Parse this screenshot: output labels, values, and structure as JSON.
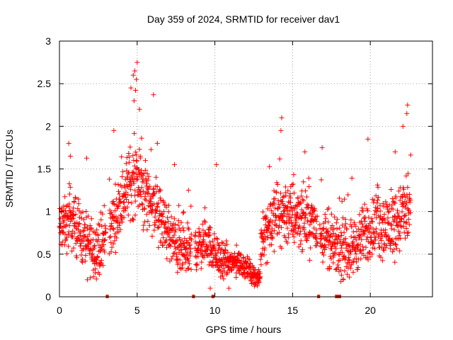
{
  "chart_data": {
    "type": "scatter",
    "title": "Day 359 of 2024, SRMTID for receiver dav1",
    "xlabel": "GPS time / hours",
    "ylabel": "SRMTID / TECUs",
    "xlim": [
      0,
      24
    ],
    "ylim": [
      0,
      3
    ],
    "xticks": [
      0,
      5,
      10,
      15,
      20
    ],
    "xtick_labels": [
      "0",
      "5",
      "10",
      "15",
      "20"
    ],
    "yticks": [
      0,
      0.5,
      1,
      1.5,
      2,
      2.5,
      3
    ],
    "ytick_labels": [
      "0",
      "0.5",
      "1",
      "1.5",
      "2",
      "2.5",
      "3"
    ],
    "grid": true,
    "marker": "+",
    "color": "#ff0000",
    "trend": [
      {
        "x": 0.0,
        "y": 0.8
      },
      {
        "x": 0.5,
        "y": 0.85
      },
      {
        "x": 1.0,
        "y": 0.85
      },
      {
        "x": 1.5,
        "y": 0.7
      },
      {
        "x": 2.0,
        "y": 0.6
      },
      {
        "x": 2.5,
        "y": 0.55
      },
      {
        "x": 3.0,
        "y": 0.7
      },
      {
        "x": 3.5,
        "y": 0.9
      },
      {
        "x": 4.0,
        "y": 1.1
      },
      {
        "x": 4.5,
        "y": 1.35
      },
      {
        "x": 5.0,
        "y": 1.4
      },
      {
        "x": 5.5,
        "y": 1.2
      },
      {
        "x": 6.0,
        "y": 1.1
      },
      {
        "x": 6.5,
        "y": 0.9
      },
      {
        "x": 7.0,
        "y": 0.75
      },
      {
        "x": 7.5,
        "y": 0.6
      },
      {
        "x": 8.0,
        "y": 0.5
      },
      {
        "x": 8.5,
        "y": 0.55
      },
      {
        "x": 9.0,
        "y": 0.6
      },
      {
        "x": 9.5,
        "y": 0.65
      },
      {
        "x": 10.0,
        "y": 0.5
      },
      {
        "x": 10.5,
        "y": 0.4
      },
      {
        "x": 11.0,
        "y": 0.4
      },
      {
        "x": 11.5,
        "y": 0.4
      },
      {
        "x": 12.0,
        "y": 0.35
      },
      {
        "x": 12.5,
        "y": 0.25
      },
      {
        "x": 12.9,
        "y": 0.2
      },
      {
        "x": 13.0,
        "y": 0.7
      },
      {
        "x": 13.5,
        "y": 0.85
      },
      {
        "x": 14.0,
        "y": 0.95
      },
      {
        "x": 14.5,
        "y": 1.0
      },
      {
        "x": 15.0,
        "y": 0.95
      },
      {
        "x": 15.5,
        "y": 0.95
      },
      {
        "x": 16.0,
        "y": 0.9
      },
      {
        "x": 16.5,
        "y": 0.8
      },
      {
        "x": 17.0,
        "y": 0.7
      },
      {
        "x": 17.5,
        "y": 0.6
      },
      {
        "x": 18.0,
        "y": 0.55
      },
      {
        "x": 18.5,
        "y": 0.55
      },
      {
        "x": 19.0,
        "y": 0.6
      },
      {
        "x": 19.5,
        "y": 0.7
      },
      {
        "x": 20.0,
        "y": 0.8
      },
      {
        "x": 20.5,
        "y": 0.85
      },
      {
        "x": 21.0,
        "y": 0.8
      },
      {
        "x": 21.5,
        "y": 0.85
      },
      {
        "x": 22.0,
        "y": 0.95
      },
      {
        "x": 22.6,
        "y": 1.05
      }
    ],
    "spread": [
      {
        "x": 0.0,
        "s": 0.45
      },
      {
        "x": 4.0,
        "s": 0.5
      },
      {
        "x": 5.0,
        "s": 0.7
      },
      {
        "x": 6.5,
        "s": 0.5
      },
      {
        "x": 10.0,
        "s": 0.35
      },
      {
        "x": 12.0,
        "s": 0.2
      },
      {
        "x": 12.9,
        "s": 0.12
      },
      {
        "x": 13.0,
        "s": 0.45
      },
      {
        "x": 14.5,
        "s": 0.6
      },
      {
        "x": 17.0,
        "s": 0.45
      },
      {
        "x": 19.5,
        "s": 0.5
      },
      {
        "x": 22.6,
        "s": 0.65
      }
    ],
    "notable_points": [
      {
        "x": 5.0,
        "y": 2.75
      },
      {
        "x": 4.85,
        "y": 2.65
      },
      {
        "x": 4.95,
        "y": 2.55
      },
      {
        "x": 4.6,
        "y": 2.45
      },
      {
        "x": 4.75,
        "y": 2.6
      },
      {
        "x": 4.8,
        "y": 2.3
      },
      {
        "x": 5.15,
        "y": 2.2
      },
      {
        "x": 6.05,
        "y": 2.37
      },
      {
        "x": 3.5,
        "y": 1.95
      },
      {
        "x": 0.6,
        "y": 1.8
      },
      {
        "x": 0.7,
        "y": 1.65
      },
      {
        "x": 6.3,
        "y": 1.8
      },
      {
        "x": 14.3,
        "y": 2.1
      },
      {
        "x": 14.25,
        "y": 1.95
      },
      {
        "x": 16.9,
        "y": 1.75
      },
      {
        "x": 19.85,
        "y": 1.85
      },
      {
        "x": 22.4,
        "y": 2.25
      },
      {
        "x": 22.35,
        "y": 2.15
      },
      {
        "x": 22.1,
        "y": 2.0
      },
      {
        "x": 21.6,
        "y": 1.7
      },
      {
        "x": 10.1,
        "y": 1.55
      },
      {
        "x": 7.4,
        "y": 1.55
      },
      {
        "x": 9.7,
        "y": 0.1
      },
      {
        "x": 10.9,
        "y": 0.1
      },
      {
        "x": 8.3,
        "y": 1.25
      },
      {
        "x": 12.6,
        "y": 0.15
      },
      {
        "x": 1.8,
        "y": 0.2
      },
      {
        "x": 12.75,
        "y": 0.15
      }
    ],
    "gaps": [
      [
        3.0,
        3.2
      ],
      [
        8.5,
        8.7
      ],
      [
        16.6,
        16.75
      ],
      [
        22.7,
        24.0
      ]
    ],
    "gap_markers_x": [
      3.05,
      3.1,
      8.6,
      8.65,
      9.85,
      9.9,
      16.65,
      16.7,
      17.8,
      17.85,
      17.95,
      18.05
    ]
  }
}
